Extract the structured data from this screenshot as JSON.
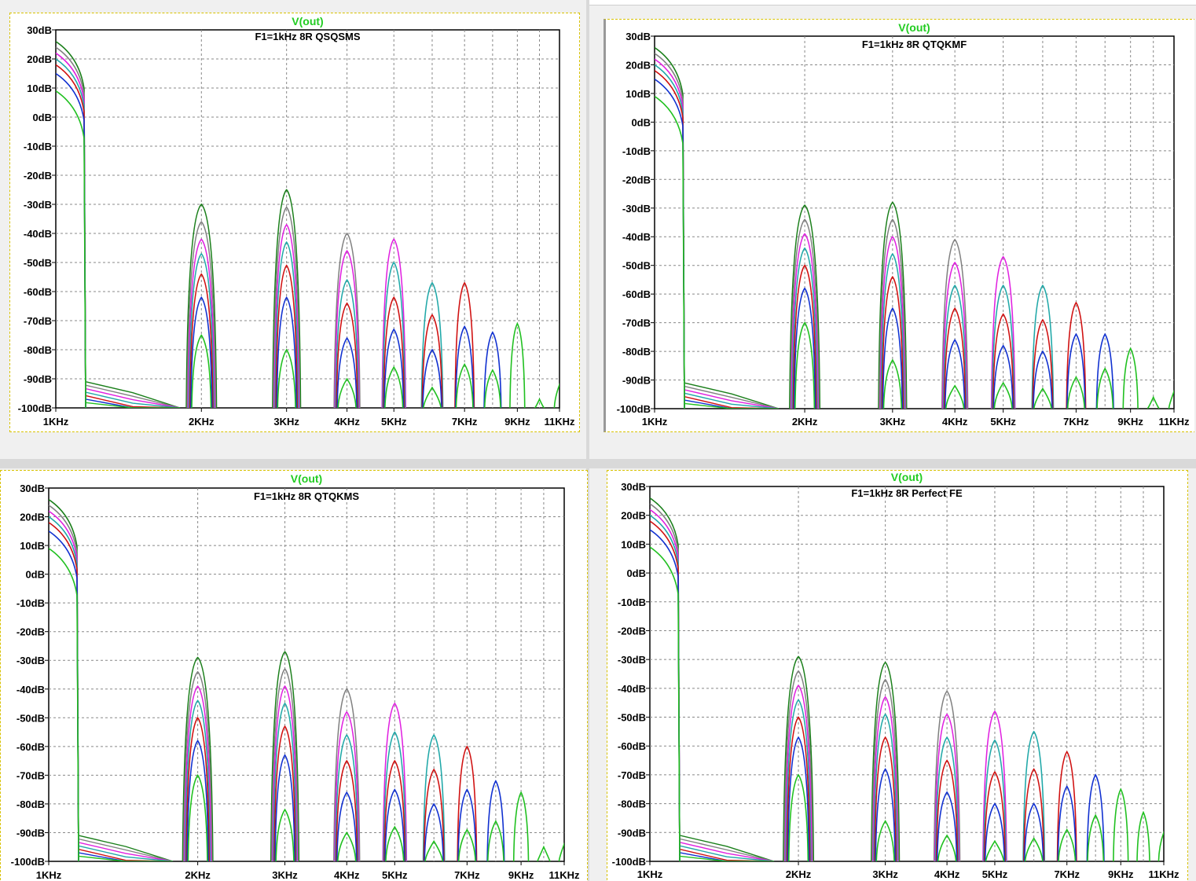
{
  "colors": {
    "trace_label": "#22cc22",
    "grid": "#888888",
    "axis": "#000000",
    "background": "#ffffff",
    "series": [
      "#1a7f1a",
      "#808080",
      "#e020e0",
      "#20a8a8",
      "#d01010",
      "#1030d0",
      "#20c020"
    ]
  },
  "chart_data": [
    {
      "type": "line",
      "trace_name": "V(out)",
      "title": "F1=1kHz 8R QSQSMS",
      "xscale": "log",
      "xlim": [
        1000,
        11000
      ],
      "ylim": [
        -100,
        30
      ],
      "grid": true,
      "x_tick_labels": [
        "1KHz",
        "2KHz",
        "3KHz",
        "4KHz",
        "5KHz",
        "7KHz",
        "9KHz",
        "11KHz"
      ],
      "y_tick_labels": [
        "30dB",
        "20dB",
        "10dB",
        "0dB",
        "-10dB",
        "-20dB",
        "-30dB",
        "-40dB",
        "-50dB",
        "-60dB",
        "-70dB",
        "-80dB",
        "-90dB",
        "-100dB"
      ],
      "harmonics": [
        {
          "freq_khz": 1,
          "peaks_db": [
            26,
            24,
            22,
            20,
            18,
            15,
            9
          ]
        },
        {
          "freq_khz": 2,
          "peaks_db": [
            -30,
            -36,
            -42,
            -47,
            -54,
            -62,
            -75
          ]
        },
        {
          "freq_khz": 3,
          "peaks_db": [
            -25,
            -31,
            -37,
            -43,
            -51,
            -62,
            -80
          ]
        },
        {
          "freq_khz": 4,
          "peaks_db": [
            -40,
            -46,
            -56,
            -64,
            -76,
            -90
          ]
        },
        {
          "freq_khz": 5,
          "peaks_db": [
            -42,
            -50,
            -62,
            -73,
            -86
          ]
        },
        {
          "freq_khz": 6,
          "peaks_db": [
            -57,
            -68,
            -80,
            -93
          ]
        },
        {
          "freq_khz": 7,
          "peaks_db": [
            -57,
            -72,
            -85
          ]
        },
        {
          "freq_khz": 8,
          "peaks_db": [
            -74,
            -87
          ]
        },
        {
          "freq_khz": 9,
          "peaks_db": [
            -71
          ]
        },
        {
          "freq_khz": 10,
          "peaks_db": [
            -97
          ]
        },
        {
          "freq_khz": 11,
          "peaks_db": [
            -92
          ]
        }
      ]
    },
    {
      "type": "line",
      "trace_name": "V(out)",
      "title": "F1=1kHz 8R QTQKMF",
      "xscale": "log",
      "xlim": [
        1000,
        11000
      ],
      "ylim": [
        -100,
        30
      ],
      "grid": true,
      "x_tick_labels": [
        "1KHz",
        "2KHz",
        "3KHz",
        "4KHz",
        "5KHz",
        "7KHz",
        "9KHz",
        "11KHz"
      ],
      "y_tick_labels": [
        "30dB",
        "20dB",
        "10dB",
        "0dB",
        "-10dB",
        "-20dB",
        "-30dB",
        "-40dB",
        "-50dB",
        "-60dB",
        "-70dB",
        "-80dB",
        "-90dB",
        "-100dB"
      ],
      "harmonics": [
        {
          "freq_khz": 1,
          "peaks_db": [
            26,
            24,
            22,
            20,
            18,
            15,
            9
          ]
        },
        {
          "freq_khz": 2,
          "peaks_db": [
            -29,
            -34,
            -39,
            -44,
            -50,
            -58,
            -70
          ]
        },
        {
          "freq_khz": 3,
          "peaks_db": [
            -28,
            -34,
            -40,
            -46,
            -54,
            -65,
            -83
          ]
        },
        {
          "freq_khz": 4,
          "peaks_db": [
            -41,
            -49,
            -57,
            -65,
            -76,
            -92
          ]
        },
        {
          "freq_khz": 5,
          "peaks_db": [
            -47,
            -57,
            -67,
            -78,
            -91
          ]
        },
        {
          "freq_khz": 6,
          "peaks_db": [
            -57,
            -69,
            -80,
            -93
          ]
        },
        {
          "freq_khz": 7,
          "peaks_db": [
            -63,
            -74,
            -89
          ]
        },
        {
          "freq_khz": 8,
          "peaks_db": [
            -74,
            -86
          ]
        },
        {
          "freq_khz": 9,
          "peaks_db": [
            -79
          ]
        },
        {
          "freq_khz": 10,
          "peaks_db": [
            -96
          ]
        },
        {
          "freq_khz": 11,
          "peaks_db": [
            -94
          ]
        }
      ]
    },
    {
      "type": "line",
      "trace_name": "V(out)",
      "title": "F1=1kHz 8R QTQKMS",
      "xscale": "log",
      "xlim": [
        1000,
        11000
      ],
      "ylim": [
        -100,
        30
      ],
      "grid": true,
      "x_tick_labels": [
        "1KHz",
        "2KHz",
        "3KHz",
        "4KHz",
        "5KHz",
        "7KHz",
        "9KHz",
        "11KHz"
      ],
      "y_tick_labels": [
        "30dB",
        "20dB",
        "10dB",
        "0dB",
        "-10dB",
        "-20dB",
        "-30dB",
        "-40dB",
        "-50dB",
        "-60dB",
        "-70dB",
        "-80dB",
        "-90dB",
        "-100dB"
      ],
      "harmonics": [
        {
          "freq_khz": 1,
          "peaks_db": [
            26,
            24,
            22,
            20,
            18,
            15,
            9
          ]
        },
        {
          "freq_khz": 2,
          "peaks_db": [
            -29,
            -34,
            -39,
            -44,
            -50,
            -58,
            -70
          ]
        },
        {
          "freq_khz": 3,
          "peaks_db": [
            -27,
            -33,
            -39,
            -45,
            -53,
            -63,
            -82
          ]
        },
        {
          "freq_khz": 4,
          "peaks_db": [
            -40,
            -48,
            -56,
            -65,
            -76,
            -90
          ]
        },
        {
          "freq_khz": 5,
          "peaks_db": [
            -45,
            -55,
            -65,
            -75,
            -88
          ]
        },
        {
          "freq_khz": 6,
          "peaks_db": [
            -56,
            -68,
            -80,
            -93
          ]
        },
        {
          "freq_khz": 7,
          "peaks_db": [
            -60,
            -75,
            -89
          ]
        },
        {
          "freq_khz": 8,
          "peaks_db": [
            -72,
            -86
          ]
        },
        {
          "freq_khz": 9,
          "peaks_db": [
            -76
          ]
        },
        {
          "freq_khz": 10,
          "peaks_db": [
            -95
          ]
        },
        {
          "freq_khz": 11,
          "peaks_db": [
            -94
          ]
        }
      ]
    },
    {
      "type": "line",
      "trace_name": "V(out)",
      "title": "F1=1kHz 8R Perfect FE",
      "xscale": "log",
      "xlim": [
        1000,
        11000
      ],
      "ylim": [
        -100,
        30
      ],
      "grid": true,
      "x_tick_labels": [
        "1KHz",
        "2KHz",
        "3KHz",
        "4KHz",
        "5KHz",
        "7KHz",
        "9KHz",
        "11KHz"
      ],
      "y_tick_labels": [
        "30dB",
        "20dB",
        "10dB",
        "0dB",
        "-10dB",
        "-20dB",
        "-30dB",
        "-40dB",
        "-50dB",
        "-60dB",
        "-70dB",
        "-80dB",
        "-90dB",
        "-100dB"
      ],
      "harmonics": [
        {
          "freq_khz": 1,
          "peaks_db": [
            26,
            24,
            22,
            20,
            18,
            15,
            9
          ]
        },
        {
          "freq_khz": 2,
          "peaks_db": [
            -29,
            -34,
            -39,
            -44,
            -50,
            -57,
            -70
          ]
        },
        {
          "freq_khz": 3,
          "peaks_db": [
            -31,
            -37,
            -43,
            -49,
            -57,
            -68,
            -86
          ]
        },
        {
          "freq_khz": 4,
          "peaks_db": [
            -41,
            -49,
            -57,
            -65,
            -76,
            -91
          ]
        },
        {
          "freq_khz": 5,
          "peaks_db": [
            -48,
            -58,
            -69,
            -80,
            -93
          ]
        },
        {
          "freq_khz": 6,
          "peaks_db": [
            -55,
            -68,
            -80,
            -92
          ]
        },
        {
          "freq_khz": 7,
          "peaks_db": [
            -62,
            -74,
            -89
          ]
        },
        {
          "freq_khz": 8,
          "peaks_db": [
            -70,
            -84
          ]
        },
        {
          "freq_khz": 9,
          "peaks_db": [
            -75
          ]
        },
        {
          "freq_khz": 10,
          "peaks_db": [
            -83
          ]
        },
        {
          "freq_khz": 11,
          "peaks_db": [
            -90
          ]
        }
      ]
    }
  ]
}
